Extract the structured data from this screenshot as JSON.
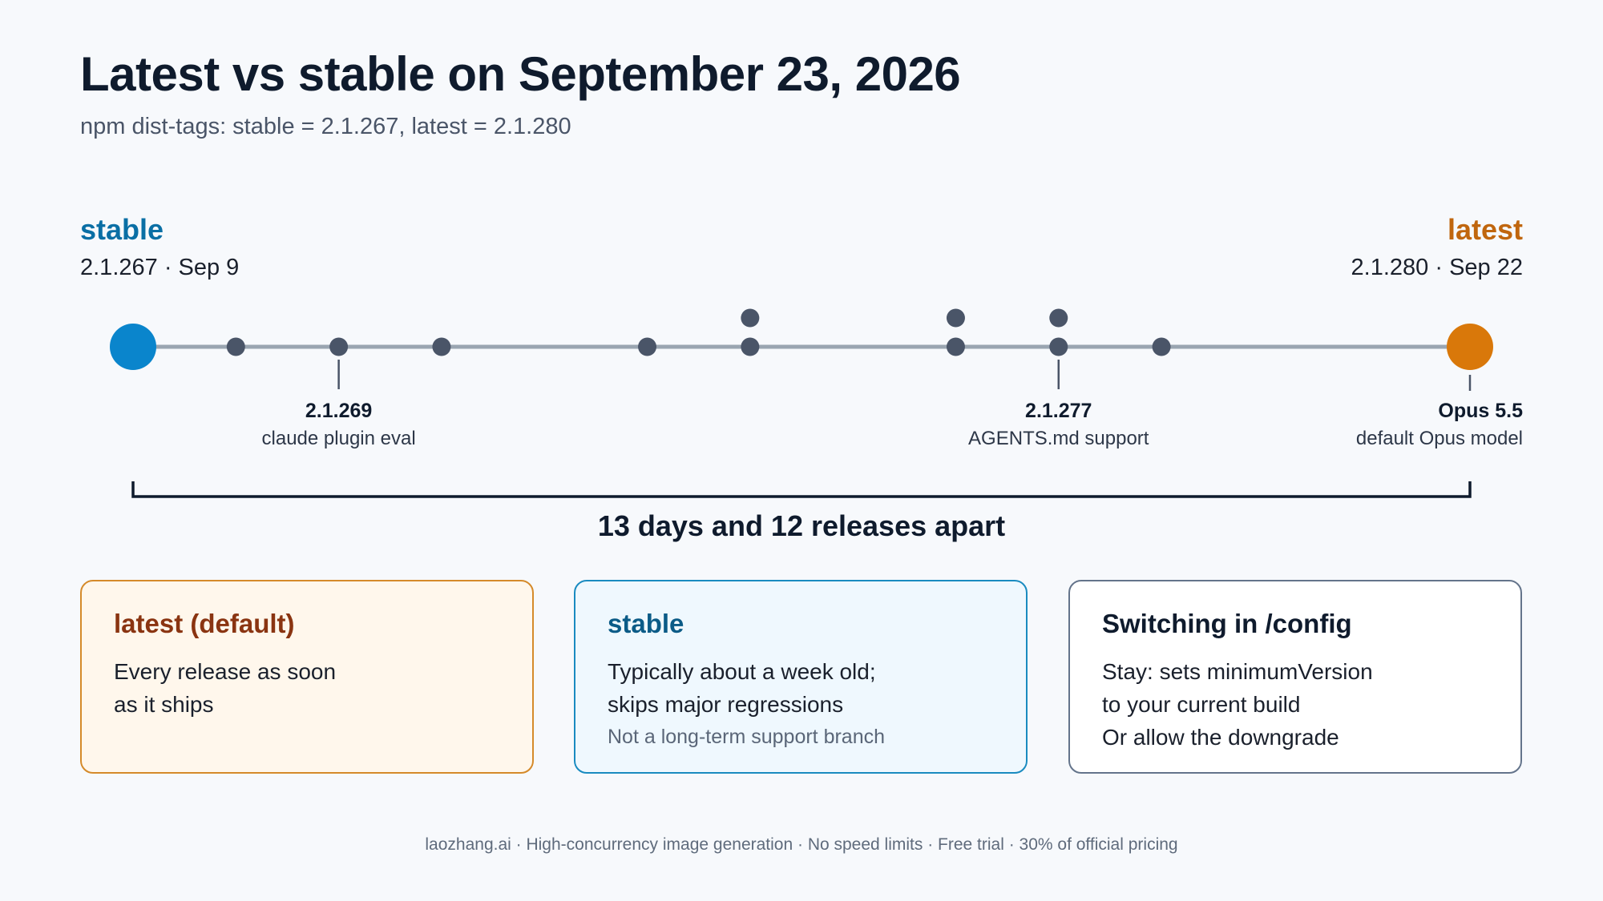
{
  "header": {
    "title": "Latest vs stable on September 23, 2026",
    "subtitle": "npm dist-tags: stable = 2.1.267, latest = 2.1.280"
  },
  "endpoints": {
    "stable": {
      "label": "stable",
      "meta": "2.1.267 · Sep 9",
      "color": "#0a85cc"
    },
    "latest": {
      "label": "latest",
      "meta": "2.1.280 · Sep 22",
      "color": "#d9780a"
    }
  },
  "timeline": {
    "start_day": 9,
    "end_day": 22,
    "release_days": [
      10,
      11,
      12,
      14,
      15,
      15,
      17,
      17,
      18,
      18,
      19
    ],
    "callouts": [
      {
        "day": 11,
        "version": "2.1.269",
        "description": "claude plugin eval"
      },
      {
        "day": 18,
        "version": "2.1.277",
        "description": "AGENTS.md support"
      },
      {
        "day": 22,
        "version": "Opus 5.5",
        "description": "default Opus model"
      }
    ],
    "colors": {
      "line": "#9aa5b1",
      "dot": "#4a5568",
      "bracket": "#0f1b2d"
    }
  },
  "gap_label": "13 days and 12 releases apart",
  "cards": {
    "latest": {
      "title": "latest (default)",
      "lines": [
        "Every release as soon",
        "as it ships"
      ]
    },
    "stable": {
      "title": "stable",
      "lines": [
        "Typically about a week old;",
        "skips major regressions"
      ],
      "note": "Not a long-term support branch"
    },
    "config": {
      "title": "Switching in /config",
      "lines": [
        "Stay: sets minimumVersion",
        "to your current build",
        "Or allow the downgrade"
      ]
    }
  },
  "footer": "laozhang.ai · High-concurrency image generation · No speed limits · Free trial · 30% of official pricing"
}
